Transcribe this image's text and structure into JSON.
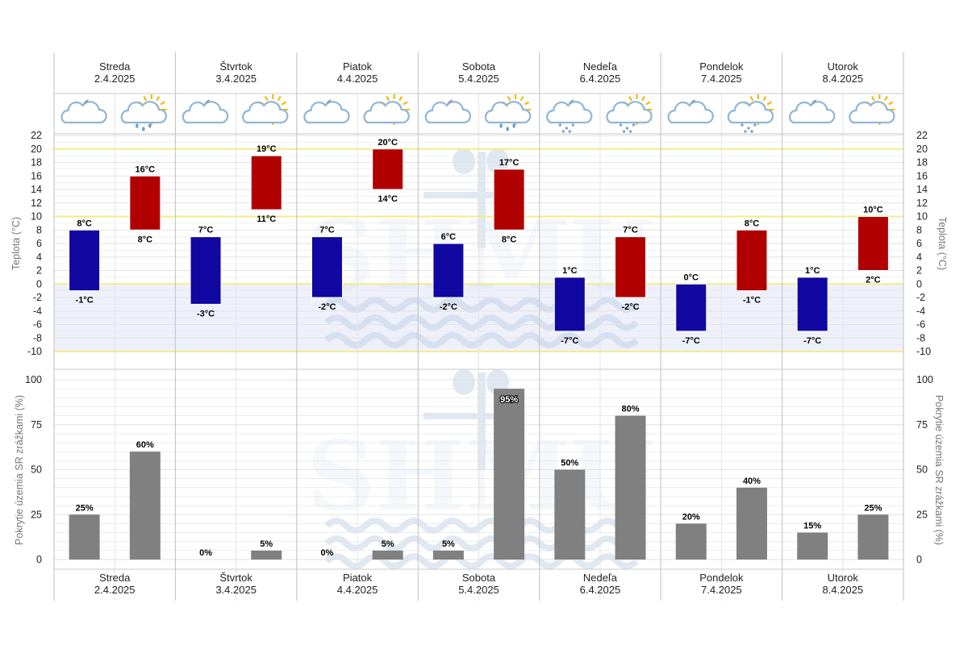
{
  "colors": {
    "night_bar": "#1008a0",
    "day_bar": "#b00000",
    "precip_bar": "#808080",
    "grid": "#e2e2e2",
    "highlight_line": "#f4ec86",
    "below_zero_fill": "#eef1fb",
    "watermark": "#a9bfdc"
  },
  "watermark": {
    "text": "SHMU"
  },
  "days": [
    {
      "name": "Streda",
      "date": "2.4.2025",
      "icons": [
        "cloud-moon-icon",
        "sun-cloud-rain-icon"
      ]
    },
    {
      "name": "Štvrtok",
      "date": "3.4.2025",
      "icons": [
        "cloud-moon-icon",
        "sun-cloud-icon"
      ]
    },
    {
      "name": "Piatok",
      "date": "4.4.2025",
      "icons": [
        "cloud-moon-icon",
        "sun-cloud-icon"
      ]
    },
    {
      "name": "Sobota",
      "date": "5.4.2025",
      "icons": [
        "cloud-moon-icon",
        "sun-cloud-rain-icon"
      ]
    },
    {
      "name": "Nedeľa",
      "date": "6.4.2025",
      "icons": [
        "cloud-moon-snow-icon",
        "sun-cloud-snow-icon"
      ]
    },
    {
      "name": "Pondelok",
      "date": "7.4.2025",
      "icons": [
        "cloud-moon-icon",
        "sun-cloud-snow-icon"
      ]
    },
    {
      "name": "Utorok",
      "date": "8.4.2025",
      "icons": [
        "cloud-moon-icon",
        "sun-cloud-icon"
      ]
    }
  ],
  "chart_data": [
    {
      "type": "bar",
      "ylabel": "Teplota (°C)",
      "ylim": [
        -10,
        22
      ],
      "yticks": [
        -10,
        -8,
        -6,
        -4,
        -2,
        0,
        2,
        4,
        6,
        8,
        10,
        12,
        14,
        16,
        18,
        20,
        22
      ],
      "highlight_lines": [
        -10,
        0,
        10,
        20
      ],
      "unit_suffix": "°C",
      "categories": [
        "2.4.2025",
        "3.4.2025",
        "4.4.2025",
        "5.4.2025",
        "6.4.2025",
        "7.4.2025",
        "8.4.2025"
      ],
      "series": [
        {
          "bar": "night",
          "min": [
            -1,
            -3,
            -2,
            -2,
            -7,
            -7,
            -7
          ],
          "max": [
            8,
            7,
            7,
            6,
            1,
            0,
            1
          ]
        },
        {
          "bar": "day",
          "min": [
            8,
            11,
            14,
            8,
            -2,
            -1,
            2
          ],
          "max": [
            16,
            19,
            20,
            17,
            7,
            8,
            10
          ]
        }
      ]
    },
    {
      "type": "bar",
      "ylabel": "Pokrytie územia SR zrážkami (%)",
      "ylim": [
        0,
        100
      ],
      "yticks": [
        0,
        25,
        50,
        75,
        100
      ],
      "unit_suffix": "%",
      "categories": [
        "2.4.2025",
        "3.4.2025",
        "4.4.2025",
        "5.4.2025",
        "6.4.2025",
        "7.4.2025",
        "8.4.2025"
      ],
      "series": [
        {
          "bar": "night",
          "values": [
            25,
            0,
            0,
            5,
            50,
            20,
            15
          ]
        },
        {
          "bar": "day",
          "values": [
            60,
            5,
            5,
            95,
            80,
            40,
            25
          ]
        }
      ]
    }
  ]
}
